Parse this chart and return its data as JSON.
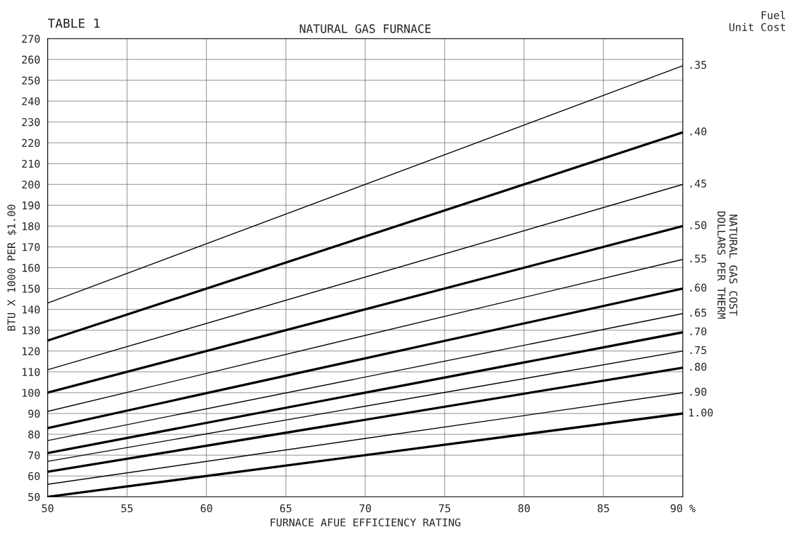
{
  "chart_data": {
    "type": "line",
    "title": "NATURAL GAS FURNACE",
    "xlabel": "FURNACE AFUE EFFICIENCY RATING",
    "ylabel": "BTU X 1000 PER $1.00",
    "y2label": "NATURAL GAS COST\nDOLLARS PER THERM",
    "annotations": [
      "TABLE 1",
      "Fuel\nUnit Cost"
    ],
    "x": [
      50,
      90
    ],
    "series": [
      {
        "name": ".35",
        "color": "#000000",
        "values": [
          143,
          257
        ]
      },
      {
        "name": ".40",
        "color": "#000000",
        "values": [
          125,
          225
        ]
      },
      {
        "name": ".45",
        "color": "#000000",
        "values": [
          111,
          200
        ]
      },
      {
        "name": ".50",
        "color": "#000000",
        "values": [
          100,
          180
        ]
      },
      {
        "name": ".55",
        "color": "#000000",
        "values": [
          91,
          164
        ]
      },
      {
        "name": ".60",
        "color": "#000000",
        "values": [
          83,
          150
        ]
      },
      {
        "name": ".65",
        "color": "#000000",
        "values": [
          77,
          138
        ]
      },
      {
        "name": ".70",
        "color": "#000000",
        "values": [
          71,
          129
        ]
      },
      {
        "name": ".75",
        "color": "#000000",
        "values": [
          67,
          120
        ]
      },
      {
        "name": ".80",
        "color": "#000000",
        "values": [
          62,
          112
        ]
      },
      {
        "name": ".90",
        "color": "#000000",
        "values": [
          56,
          100
        ]
      },
      {
        "name": "1.00",
        "color": "#000000",
        "values": [
          50,
          90
        ]
      }
    ],
    "xlim": [
      50,
      90
    ],
    "ylim": [
      50,
      270
    ],
    "xticks": [
      50,
      55,
      60,
      65,
      70,
      75,
      80,
      85,
      {
        "value": 90,
        "label": "90 %"
      }
    ],
    "yticks": [
      50,
      60,
      70,
      80,
      90,
      100,
      110,
      120,
      130,
      140,
      150,
      160,
      170,
      180,
      190,
      200,
      210,
      220,
      230,
      240,
      250,
      260,
      270
    ],
    "grid": true,
    "legend": false,
    "marker": "none",
    "line_style": "solid"
  }
}
